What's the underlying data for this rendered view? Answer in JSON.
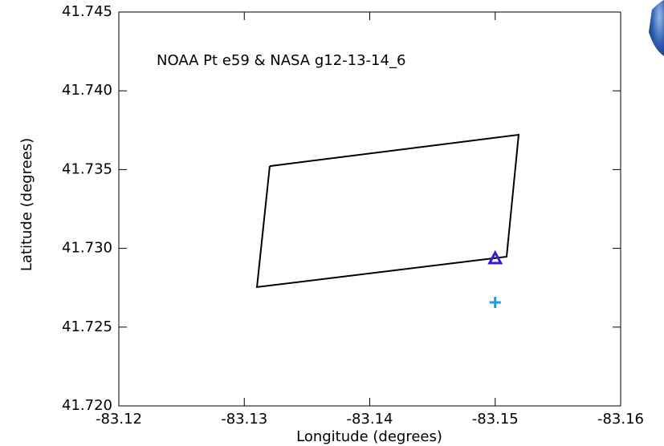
{
  "chart_data": {
    "type": "scatter",
    "annotation": "NOAA Pt e59 & NASA g12-13-14_6",
    "x_label": "Longitude (degrees)",
    "y_label": "Latitude (degrees)",
    "xlim": [
      -83.12,
      -83.16
    ],
    "ylim": [
      41.72,
      41.745
    ],
    "xticks": [
      -83.12,
      -83.13,
      -83.14,
      -83.15,
      -83.16
    ],
    "yticks": [
      {
        "value": 41.72,
        "label": "41.720"
      },
      41.725,
      {
        "value": 41.73,
        "label": "41.730"
      },
      41.735,
      {
        "value": 41.74,
        "label": "41.740"
      },
      41.745
    ],
    "series": [
      {
        "marker": "line",
        "color": "#000000",
        "x": [
          -83.13203,
          -83.15187,
          -83.15091,
          -83.13101,
          -83.13203
        ],
        "values": [
          41.73522,
          41.73721,
          41.72947,
          41.72754,
          41.73522
        ]
      },
      {
        "marker": "triangle",
        "color": "#3a1ad0",
        "x": [
          -83.15
        ],
        "values": [
          41.72932
        ]
      },
      {
        "marker": "plus",
        "color": "#1a9be0",
        "x": [
          -83.15
        ],
        "values": [
          41.72657
        ]
      }
    ]
  }
}
